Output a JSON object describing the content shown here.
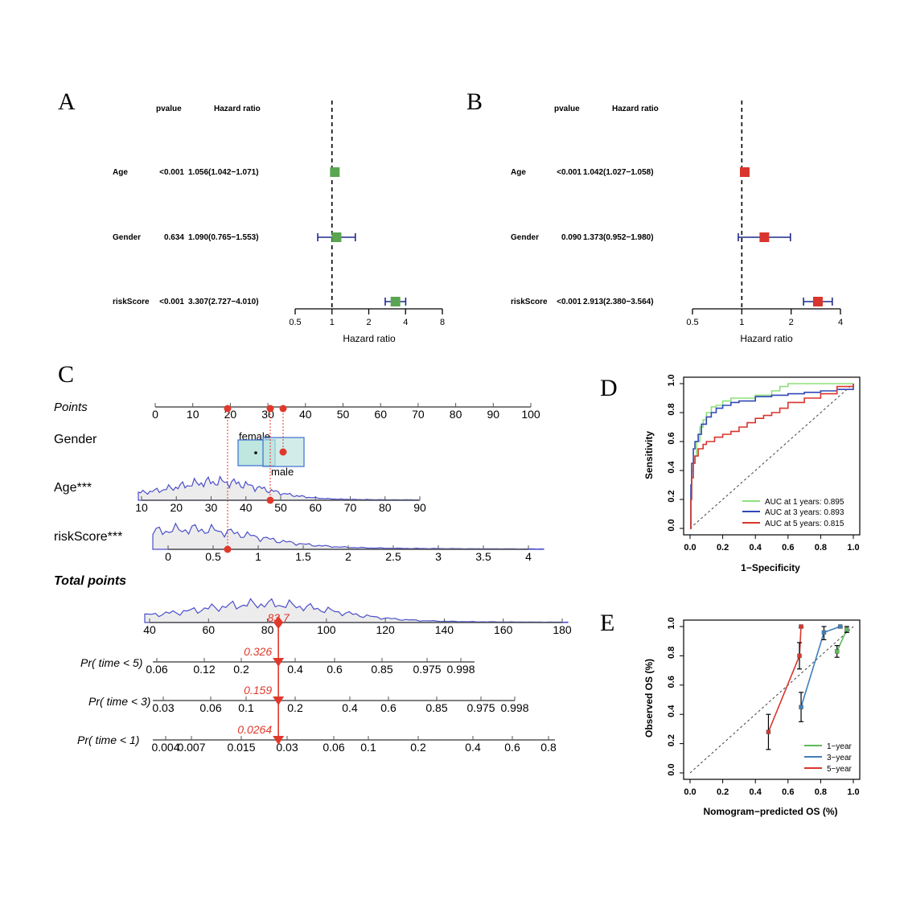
{
  "panels": {
    "A": "A",
    "B": "B",
    "C": "C",
    "D": "D",
    "E": "E"
  },
  "chart_data": [
    {
      "panel": "A",
      "type": "forest",
      "col_pvalue": "pvalue",
      "col_hr": "Hazard ratio",
      "xlabel": "Hazard ratio",
      "scale": "log",
      "ticks": [
        0.5,
        1,
        2,
        4,
        8
      ],
      "tick_labels": [
        "0.5",
        "1",
        "2",
        "4",
        "8"
      ],
      "xlim": [
        0.5,
        8
      ],
      "ref": 1,
      "color": "#5aa552",
      "rows": [
        {
          "label": "Age",
          "pvalue": "<0.001",
          "hr_text": "1.056(1.042−1.071)",
          "hr": 1.056,
          "lo": 1.042,
          "hi": 1.071
        },
        {
          "label": "Gender",
          "pvalue": "0.634",
          "hr_text": "1.090(0.765−1.553)",
          "hr": 1.09,
          "lo": 0.765,
          "hi": 1.553
        },
        {
          "label": "riskScore",
          "pvalue": "<0.001",
          "hr_text": "3.307(2.727−4.010)",
          "hr": 3.307,
          "lo": 2.727,
          "hi": 4.01
        }
      ]
    },
    {
      "panel": "B",
      "type": "forest",
      "col_pvalue": "pvalue",
      "col_hr": "Hazard ratio",
      "xlabel": "Hazard ratio",
      "scale": "log",
      "ticks": [
        0.5,
        1,
        2,
        4
      ],
      "tick_labels": [
        "0.5",
        "1",
        "2",
        "4"
      ],
      "xlim": [
        0.5,
        4
      ],
      "ref": 1,
      "color": "#d9352c",
      "rows": [
        {
          "label": "Age",
          "pvalue": "<0.001",
          "hr_text": "1.042(1.027−1.058)",
          "hr": 1.042,
          "lo": 1.027,
          "hi": 1.058
        },
        {
          "label": "Gender",
          "pvalue": "0.090",
          "hr_text": "1.373(0.952−1.980)",
          "hr": 1.373,
          "lo": 0.952,
          "hi": 1.98
        },
        {
          "label": "riskScore",
          "pvalue": "<0.001",
          "hr_text": "2.913(2.380−3.564)",
          "hr": 2.913,
          "lo": 2.38,
          "hi": 3.564
        }
      ]
    },
    {
      "panel": "C",
      "type": "nomogram",
      "rows": {
        "points": {
          "label": "Points",
          "ticks": [
            0,
            10,
            20,
            30,
            40,
            50,
            60,
            70,
            80,
            90,
            100
          ],
          "tick_labels": [
            "0",
            "10",
            "20",
            "30",
            "40",
            "50",
            "60",
            "70",
            "80",
            "90",
            "100"
          ]
        },
        "gender": {
          "label": "Gender",
          "levels": [
            "female",
            "male"
          ]
        },
        "age": {
          "label": "Age***",
          "ticks": [
            10,
            20,
            30,
            40,
            50,
            60,
            70,
            80,
            90
          ],
          "tick_labels": [
            "10",
            "20",
            "30",
            "40",
            "50",
            "60",
            "70",
            "80",
            "90"
          ]
        },
        "risk": {
          "label": "riskScore***",
          "ticks": [
            0,
            0.5,
            1,
            1.5,
            2,
            2.5,
            3,
            3.5,
            4
          ],
          "tick_labels": [
            "0",
            "0.5",
            "1",
            "1.5",
            "2",
            "2.5",
            "3",
            "3.5",
            "4"
          ]
        },
        "total": {
          "label": "Total points",
          "ticks": [
            40,
            60,
            80,
            100,
            120,
            140,
            160,
            180
          ],
          "tick_labels": [
            "40",
            "60",
            "80",
            "100",
            "120",
            "140",
            "160",
            "180"
          ],
          "value": 83.7,
          "value_label": "83.7"
        },
        "pr5": {
          "label": "Pr( time < 5)",
          "tick_labels": [
            "0.06",
            "0.12",
            "0.2",
            "0.4",
            "0.6",
            "0.85",
            "0.975",
            "0.998"
          ],
          "value": 0.326,
          "value_label": "0.326"
        },
        "pr3": {
          "label": "Pr( time < 3)",
          "tick_labels": [
            "0.03",
            "0.06",
            "0.1",
            "0.2",
            "0.4",
            "0.6",
            "0.85",
            "0.975",
            "0.998"
          ],
          "value": 0.159,
          "value_label": "0.159"
        },
        "pr1": {
          "label": "Pr( time < 1)",
          "tick_labels": [
            "0.004",
            "0.007",
            "0.015",
            "0.03",
            "0.06",
            "0.1",
            "0.2",
            "0.4",
            "0.6",
            "0.8"
          ],
          "value": 0.0264,
          "value_label": "0.0264"
        }
      },
      "colors": {
        "density": "#4b4fc9",
        "fill": "#ececec",
        "marker": "#e0392c",
        "box_fill": "#bfe6df",
        "box_stroke": "#3b6fd1"
      }
    },
    {
      "panel": "D",
      "type": "line",
      "xlabel": "1−Specificity",
      "ylabel": "Sensitivity",
      "xlim": [
        0,
        1
      ],
      "ylim": [
        0,
        1
      ],
      "ticks": [
        "0.0",
        "0.2",
        "0.4",
        "0.6",
        "0.8",
        "1.0"
      ],
      "series": [
        {
          "name": "AUC at 1 years: 0.895",
          "color": "#8ee07a",
          "x": [
            0,
            0.005,
            0.01,
            0.02,
            0.03,
            0.04,
            0.06,
            0.08,
            0.1,
            0.13,
            0.16,
            0.2,
            0.25,
            0.3,
            0.4,
            0.5,
            0.55,
            0.6,
            0.7,
            0.8,
            0.9,
            1.0
          ],
          "y": [
            0,
            0.25,
            0.4,
            0.45,
            0.5,
            0.6,
            0.7,
            0.75,
            0.8,
            0.84,
            0.85,
            0.88,
            0.9,
            0.9,
            0.92,
            0.95,
            0.98,
            1.0,
            1.0,
            1.0,
            1.0,
            1.0
          ]
        },
        {
          "name": "AUC at 3 years: 0.893",
          "color": "#3048b8",
          "x": [
            0,
            0.005,
            0.01,
            0.02,
            0.03,
            0.05,
            0.07,
            0.1,
            0.13,
            0.16,
            0.2,
            0.25,
            0.3,
            0.4,
            0.5,
            0.6,
            0.7,
            0.8,
            0.9,
            1.0
          ],
          "y": [
            0,
            0.3,
            0.45,
            0.55,
            0.6,
            0.65,
            0.72,
            0.77,
            0.8,
            0.83,
            0.85,
            0.87,
            0.88,
            0.91,
            0.92,
            0.93,
            0.94,
            0.95,
            0.96,
            1.0
          ]
        },
        {
          "name": "AUC at 5 years: 0.815",
          "color": "#d9352c",
          "x": [
            0,
            0.005,
            0.01,
            0.02,
            0.03,
            0.05,
            0.08,
            0.1,
            0.15,
            0.2,
            0.25,
            0.3,
            0.35,
            0.4,
            0.45,
            0.5,
            0.55,
            0.6,
            0.7,
            0.8,
            0.9,
            1.0
          ],
          "y": [
            0,
            0.2,
            0.35,
            0.45,
            0.5,
            0.55,
            0.58,
            0.6,
            0.63,
            0.65,
            0.67,
            0.7,
            0.73,
            0.76,
            0.78,
            0.8,
            0.83,
            0.87,
            0.9,
            0.93,
            0.98,
            1.0
          ]
        }
      ],
      "legend": "bottom-right"
    },
    {
      "panel": "E",
      "type": "line",
      "xlabel": "Nomogram−predicted OS (%)",
      "ylabel": "Observed OS (%)",
      "xlim": [
        0,
        1
      ],
      "ylim": [
        0,
        1
      ],
      "ticks": [
        "0.0",
        "0.2",
        "0.4",
        "0.6",
        "0.8",
        "1.0"
      ],
      "series": [
        {
          "name": "1−year",
          "color": "#5dba5a",
          "x": [
            0.9,
            0.96
          ],
          "y": [
            0.83,
            0.98
          ],
          "err": [
            0.04,
            0.02
          ]
        },
        {
          "name": "3−year",
          "color": "#3f7fb8",
          "x": [
            0.68,
            0.82,
            0.92
          ],
          "y": [
            0.45,
            0.96,
            1.0
          ],
          "err": [
            0.1,
            0.05,
            0.01
          ]
        },
        {
          "name": "5−year",
          "color": "#d9352c",
          "x": [
            0.48,
            0.67,
            0.68
          ],
          "y": [
            0.28,
            0.8,
            1.0
          ],
          "err": [
            0.12,
            0.09,
            0.01
          ]
        }
      ],
      "legend": "bottom-right"
    }
  ]
}
